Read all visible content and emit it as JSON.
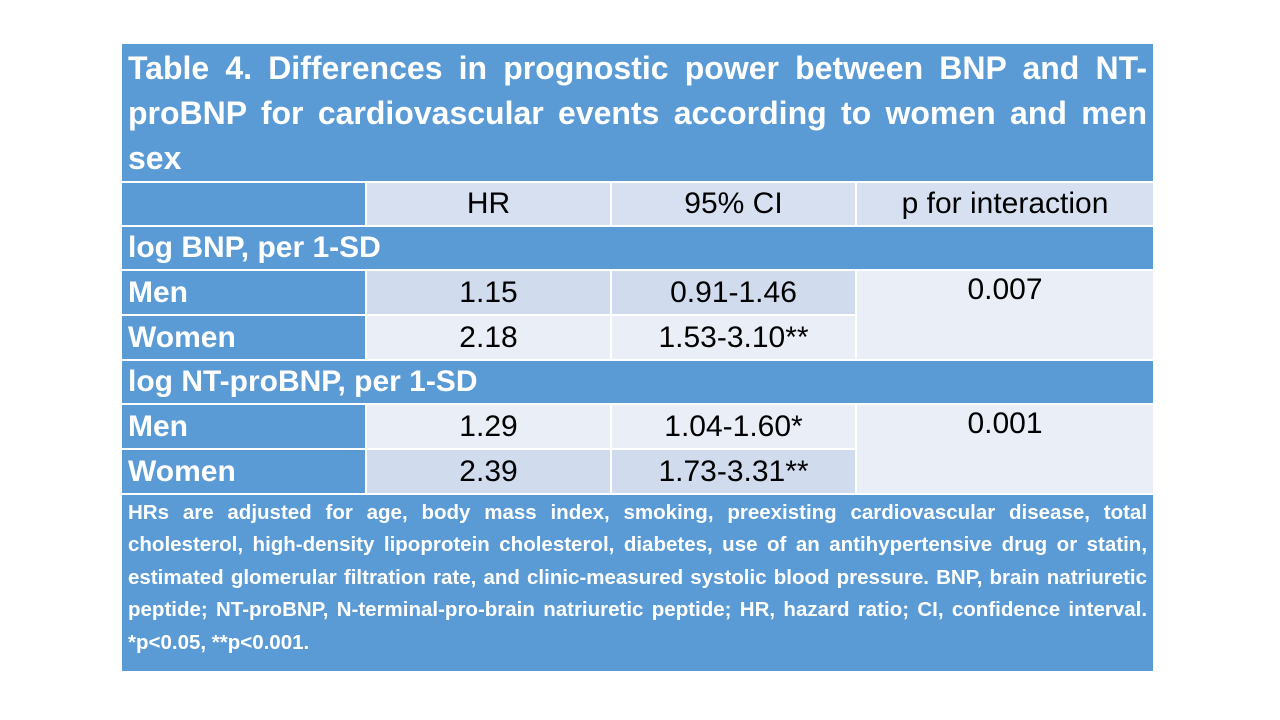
{
  "table": {
    "title": "Table 4. Differences in prognostic power between BNP and NT-proBNP for cardiovascular events according to women and men sex",
    "columns": [
      "",
      "HR",
      "95% CI",
      "p for interaction"
    ],
    "sections": [
      {
        "label": "log BNP, per 1-SD",
        "rows": [
          {
            "group": "Men",
            "hr": "1.15",
            "ci": "0.91-1.46"
          },
          {
            "group": "Women",
            "hr": "2.18",
            "ci": "1.53-3.10**"
          }
        ],
        "p_interaction": "0.007"
      },
      {
        "label": "log NT-proBNP, per 1-SD",
        "rows": [
          {
            "group": "Men",
            "hr": "1.29",
            "ci": "1.04-1.60*"
          },
          {
            "group": "Women",
            "hr": "2.39",
            "ci": "1.73-3.31**"
          }
        ],
        "p_interaction": "0.001"
      }
    ],
    "footnote": "HRs are adjusted for age, body mass index, smoking, preexisting cardiovascular disease, total cholesterol, high-density lipoprotein cholesterol, diabetes, use of an antihypertensive drug or statin, estimated glomerular filtration rate, and clinic-measured systolic blood pressure. BNP, brain natriuretic peptide; NT-proBNP, N-terminal-pro-brain natriuretic peptide; HR, hazard ratio; CI, confidence interval. *p<0.05, **p<0.001."
  },
  "colors": {
    "header_blue": "#5b9bd5",
    "band_dark": "#d0dbee",
    "band_light": "#e9eef7",
    "text_white": "#ffffff"
  }
}
